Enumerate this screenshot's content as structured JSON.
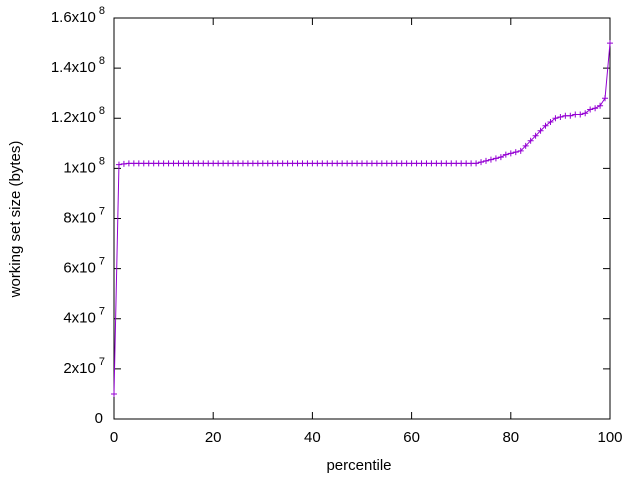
{
  "chart_data": {
    "type": "line",
    "xlabel": "percentile",
    "ylabel": "working set size (bytes)",
    "x": [
      0,
      1,
      2,
      3,
      4,
      5,
      6,
      7,
      8,
      9,
      10,
      11,
      12,
      13,
      14,
      15,
      16,
      17,
      18,
      19,
      20,
      21,
      22,
      23,
      24,
      25,
      26,
      27,
      28,
      29,
      30,
      31,
      32,
      33,
      34,
      35,
      36,
      37,
      38,
      39,
      40,
      41,
      42,
      43,
      44,
      45,
      46,
      47,
      48,
      49,
      50,
      51,
      52,
      53,
      54,
      55,
      56,
      57,
      58,
      59,
      60,
      61,
      62,
      63,
      64,
      65,
      66,
      67,
      68,
      69,
      70,
      71,
      72,
      73,
      74,
      75,
      76,
      77,
      78,
      79,
      80,
      81,
      82,
      83,
      84,
      85,
      86,
      87,
      88,
      89,
      90,
      91,
      92,
      93,
      94,
      95,
      96,
      97,
      98,
      99,
      100
    ],
    "series": [
      {
        "color": "#9400d3",
        "values": [
          10000000,
          101500000,
          101800000,
          102000000,
          102000000,
          102000000,
          102000000,
          102000000,
          102000000,
          102000000,
          102000000,
          102000000,
          102000000,
          102000000,
          102000000,
          102000000,
          102000000,
          102000000,
          102000000,
          102000000,
          102000000,
          102000000,
          102000000,
          102000000,
          102000000,
          102000000,
          102000000,
          102000000,
          102000000,
          102000000,
          102000000,
          102000000,
          102000000,
          102000000,
          102000000,
          102000000,
          102000000,
          102000000,
          102000000,
          102000000,
          102000000,
          102000000,
          102000000,
          102000000,
          102000000,
          102000000,
          102000000,
          102000000,
          102000000,
          102000000,
          102000000,
          102000000,
          102000000,
          102000000,
          102000000,
          102000000,
          102000000,
          102000000,
          102000000,
          102000000,
          102000000,
          102000000,
          102000000,
          102000000,
          102000000,
          102000000,
          102000000,
          102000000,
          102000000,
          102000000,
          102000000,
          102000000,
          102000000,
          102000000,
          102500000,
          103000000,
          103500000,
          104000000,
          104500000,
          105500000,
          106000000,
          106500000,
          107000000,
          109000000,
          111000000,
          113000000,
          115000000,
          117000000,
          118500000,
          120000000,
          120500000,
          121000000,
          121000000,
          121500000,
          121500000,
          122000000,
          123500000,
          124000000,
          125000000,
          128000000,
          150000000
        ]
      }
    ],
    "xlim": [
      0,
      100
    ],
    "xticks": [
      0,
      20,
      40,
      60,
      80,
      100
    ],
    "ylim": [
      0,
      160000000
    ],
    "yticks": [
      0,
      {
        "value": 20000000,
        "label": "2x10",
        "exponent": "7"
      },
      {
        "value": 40000000,
        "label": "4x10",
        "exponent": "7"
      },
      {
        "value": 60000000,
        "label": "6x10",
        "exponent": "7"
      },
      {
        "value": 80000000,
        "label": "8x10",
        "exponent": "7"
      },
      {
        "value": 100000000,
        "label": "1x10",
        "exponent": "8"
      },
      {
        "value": 120000000,
        "label": "1.2x10",
        "exponent": "8"
      },
      {
        "value": 140000000,
        "label": "1.4x10",
        "exponent": "8"
      },
      {
        "value": 160000000,
        "label": "1.6x10",
        "exponent": "8"
      }
    ]
  }
}
